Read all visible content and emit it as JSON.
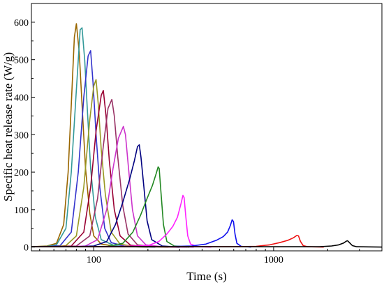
{
  "chart_data": {
    "type": "line",
    "xscale": "log",
    "xlim": [
      45,
      4000
    ],
    "ylim": [
      -10,
      650
    ],
    "xlabel": "Time (s)",
    "ylabel": "Specific heat release rate (W/g)",
    "xticks": [
      100,
      1000
    ],
    "xtick_labels": [
      "100",
      "1000"
    ],
    "yticks": [
      0,
      100,
      200,
      300,
      400,
      500,
      600
    ],
    "ytick_labels": [
      "0",
      "100",
      "200",
      "300",
      "400",
      "500",
      "600"
    ],
    "grid": false,
    "legend": "none",
    "series": [
      {
        "color": "#996600",
        "points": [
          [
            45,
            1
          ],
          [
            55,
            3
          ],
          [
            62,
            10
          ],
          [
            68,
            60
          ],
          [
            72,
            200
          ],
          [
            75,
            380
          ],
          [
            78,
            560
          ],
          [
            80,
            596
          ],
          [
            83,
            520
          ],
          [
            86,
            380
          ],
          [
            90,
            210
          ],
          [
            95,
            90
          ],
          [
            100,
            30
          ],
          [
            110,
            8
          ],
          [
            130,
            3
          ],
          [
            160,
            1
          ],
          [
            200,
            0
          ]
        ]
      },
      {
        "color": "#339999",
        "points": [
          [
            45,
            1
          ],
          [
            55,
            2
          ],
          [
            62,
            6
          ],
          [
            70,
            50
          ],
          [
            75,
            200
          ],
          [
            80,
            420
          ],
          [
            84,
            580
          ],
          [
            86,
            585
          ],
          [
            89,
            500
          ],
          [
            92,
            370
          ],
          [
            96,
            210
          ],
          [
            102,
            80
          ],
          [
            110,
            20
          ],
          [
            130,
            4
          ],
          [
            160,
            1
          ],
          [
            220,
            0
          ]
        ]
      },
      {
        "color": "#3333cc",
        "points": [
          [
            45,
            1
          ],
          [
            55,
            1
          ],
          [
            65,
            4
          ],
          [
            75,
            40
          ],
          [
            82,
            200
          ],
          [
            88,
            400
          ],
          [
            93,
            510
          ],
          [
            96,
            524
          ],
          [
            99,
            440
          ],
          [
            103,
            300
          ],
          [
            108,
            160
          ],
          [
            115,
            50
          ],
          [
            125,
            12
          ],
          [
            150,
            2
          ],
          [
            220,
            0
          ]
        ]
      },
      {
        "color": "#999922",
        "points": [
          [
            45,
            1
          ],
          [
            60,
            1
          ],
          [
            70,
            4
          ],
          [
            80,
            30
          ],
          [
            88,
            160
          ],
          [
            95,
            340
          ],
          [
            100,
            430
          ],
          [
            103,
            447
          ],
          [
            106,
            380
          ],
          [
            110,
            260
          ],
          [
            116,
            140
          ],
          [
            125,
            40
          ],
          [
            140,
            8
          ],
          [
            170,
            1
          ],
          [
            260,
            0
          ]
        ]
      },
      {
        "color": "#990033",
        "points": [
          [
            45,
            1
          ],
          [
            60,
            1
          ],
          [
            75,
            3
          ],
          [
            88,
            40
          ],
          [
            96,
            160
          ],
          [
            103,
            310
          ],
          [
            110,
            405
          ],
          [
            113,
            418
          ],
          [
            117,
            350
          ],
          [
            122,
            230
          ],
          [
            130,
            100
          ],
          [
            140,
            30
          ],
          [
            160,
            5
          ],
          [
            200,
            1
          ],
          [
            300,
            0
          ]
        ]
      },
      {
        "color": "#993366",
        "points": [
          [
            45,
            1
          ],
          [
            65,
            1
          ],
          [
            80,
            3
          ],
          [
            95,
            30
          ],
          [
            105,
            130
          ],
          [
            113,
            270
          ],
          [
            120,
            370
          ],
          [
            126,
            394
          ],
          [
            130,
            350
          ],
          [
            136,
            240
          ],
          [
            145,
            110
          ],
          [
            155,
            35
          ],
          [
            175,
            6
          ],
          [
            220,
            1
          ],
          [
            330,
            0
          ]
        ]
      },
      {
        "color": "#cc33cc",
        "points": [
          [
            45,
            1
          ],
          [
            70,
            1
          ],
          [
            90,
            3
          ],
          [
            105,
            20
          ],
          [
            118,
            100
          ],
          [
            128,
            210
          ],
          [
            137,
            290
          ],
          [
            146,
            322
          ],
          [
            150,
            300
          ],
          [
            156,
            210
          ],
          [
            164,
            100
          ],
          [
            175,
            30
          ],
          [
            195,
            6
          ],
          [
            240,
            1
          ],
          [
            360,
            0
          ]
        ]
      },
      {
        "color": "#000080",
        "points": [
          [
            45,
            1
          ],
          [
            80,
            1
          ],
          [
            100,
            3
          ],
          [
            118,
            15
          ],
          [
            132,
            60
          ],
          [
            145,
            120
          ],
          [
            158,
            180
          ],
          [
            168,
            230
          ],
          [
            175,
            268
          ],
          [
            179,
            273
          ],
          [
            183,
            240
          ],
          [
            190,
            160
          ],
          [
            198,
            70
          ],
          [
            210,
            20
          ],
          [
            240,
            3
          ],
          [
            300,
            0
          ]
        ]
      },
      {
        "color": "#228822",
        "points": [
          [
            45,
            1
          ],
          [
            90,
            1
          ],
          [
            120,
            2
          ],
          [
            145,
            10
          ],
          [
            165,
            40
          ],
          [
            182,
            85
          ],
          [
            198,
            130
          ],
          [
            212,
            165
          ],
          [
            222,
            195
          ],
          [
            228,
            214
          ],
          [
            231,
            210
          ],
          [
            236,
            150
          ],
          [
            244,
            60
          ],
          [
            255,
            15
          ],
          [
            280,
            3
          ],
          [
            340,
            0
          ]
        ]
      },
      {
        "color": "#ff22ff",
        "points": [
          [
            45,
            1
          ],
          [
            100,
            1
          ],
          [
            150,
            2
          ],
          [
            200,
            4
          ],
          [
            230,
            15
          ],
          [
            255,
            35
          ],
          [
            275,
            55
          ],
          [
            292,
            80
          ],
          [
            305,
            115
          ],
          [
            313,
            138
          ],
          [
            318,
            132
          ],
          [
            325,
            80
          ],
          [
            333,
            30
          ],
          [
            345,
            8
          ],
          [
            380,
            1
          ],
          [
            450,
            0
          ]
        ]
      },
      {
        "color": "#1111ee",
        "points": [
          [
            45,
            1
          ],
          [
            150,
            1
          ],
          [
            250,
            1
          ],
          [
            350,
            3
          ],
          [
            420,
            8
          ],
          [
            480,
            18
          ],
          [
            525,
            28
          ],
          [
            555,
            40
          ],
          [
            575,
            58
          ],
          [
            588,
            73
          ],
          [
            598,
            68
          ],
          [
            610,
            35
          ],
          [
            625,
            10
          ],
          [
            660,
            2
          ],
          [
            750,
            0
          ]
        ]
      },
      {
        "color": "#ee1111",
        "points": [
          [
            45,
            1
          ],
          [
            300,
            1
          ],
          [
            600,
            1
          ],
          [
            800,
            2
          ],
          [
            950,
            6
          ],
          [
            1080,
            12
          ],
          [
            1200,
            18
          ],
          [
            1290,
            25
          ],
          [
            1345,
            31
          ],
          [
            1375,
            30
          ],
          [
            1410,
            15
          ],
          [
            1460,
            4
          ],
          [
            1550,
            1
          ],
          [
            1900,
            0
          ]
        ]
      },
      {
        "color": "#000000",
        "points": [
          [
            45,
            1
          ],
          [
            1000,
            1
          ],
          [
            1800,
            1
          ],
          [
            2100,
            3
          ],
          [
            2300,
            6
          ],
          [
            2450,
            11
          ],
          [
            2540,
            16
          ],
          [
            2580,
            17
          ],
          [
            2640,
            12
          ],
          [
            2740,
            4
          ],
          [
            2900,
            1
          ],
          [
            4000,
            0
          ]
        ]
      }
    ]
  }
}
